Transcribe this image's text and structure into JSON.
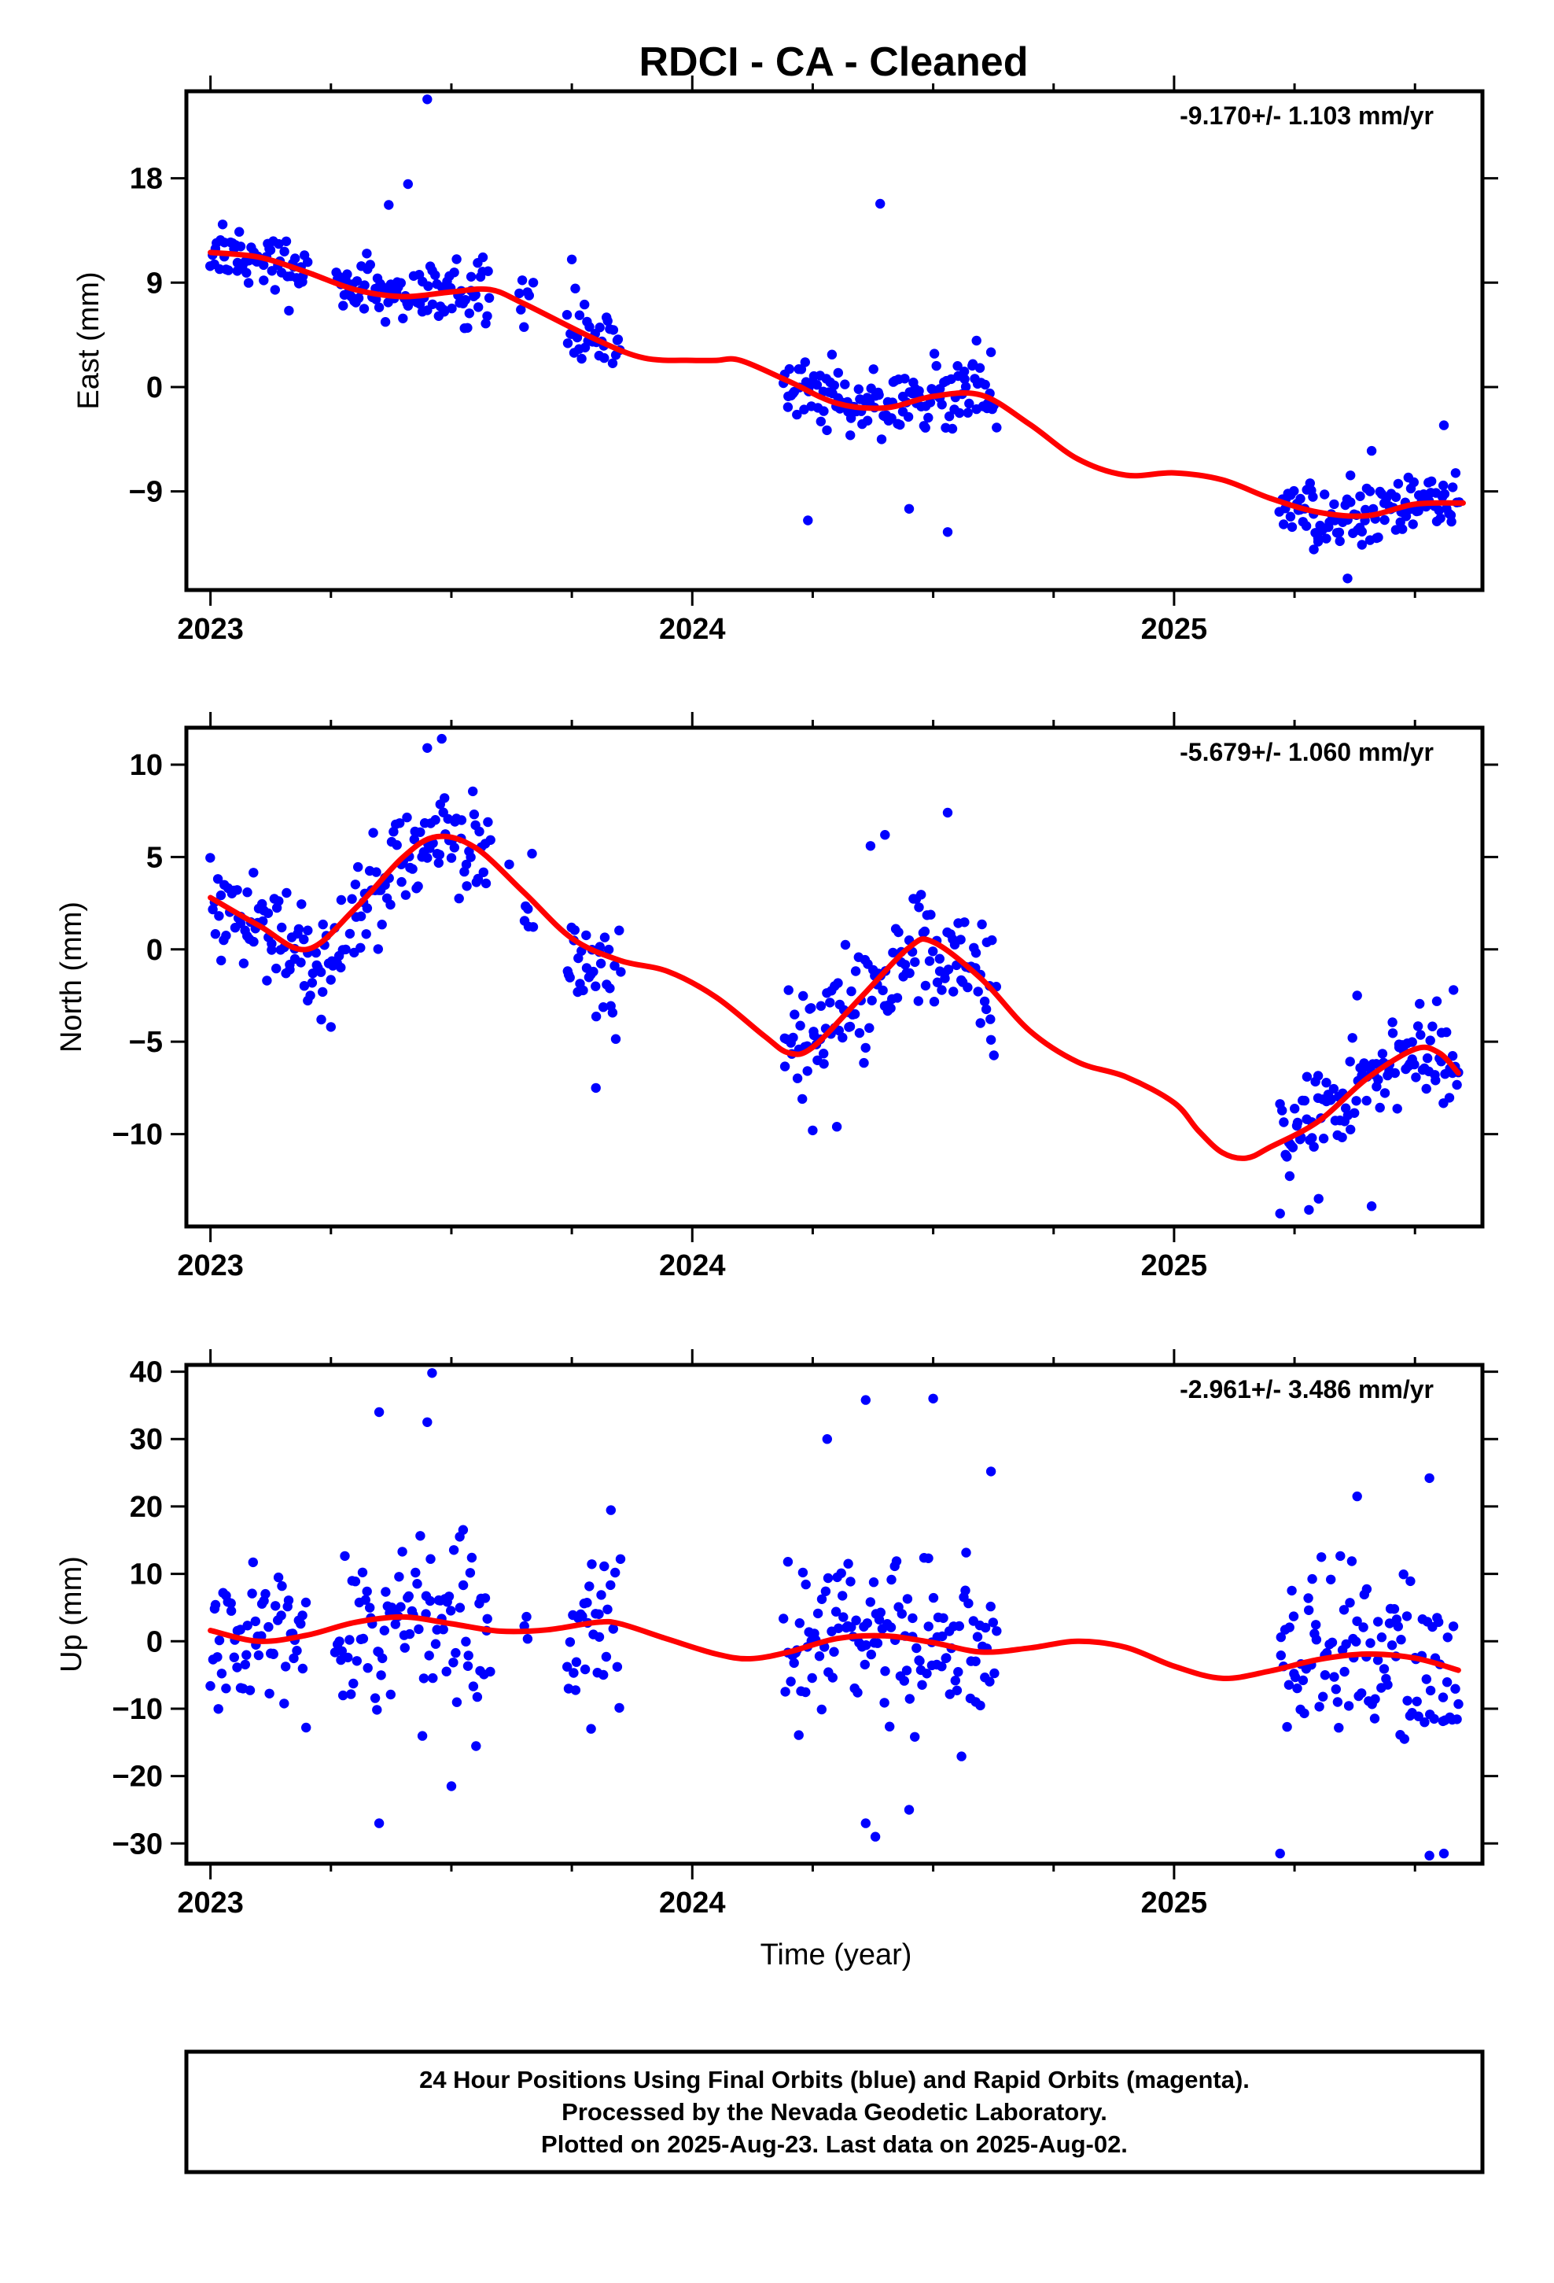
{
  "title": "RDCI  - CA - Cleaned",
  "chart_data": [
    {
      "type": "scatter",
      "ylabel": "East (mm)",
      "rate_label": "-9.170+/- 1.103 mm/yr",
      "xlim": [
        2022.95,
        2025.64
      ],
      "ylim": [
        -17.5,
        25.5
      ],
      "xticks": [
        2023,
        2024,
        2025
      ],
      "xtick_labels": [
        "2023",
        "2024",
        "2025"
      ],
      "yticks": [
        -9,
        0,
        9,
        18
      ],
      "ytick_labels": [
        "−9",
        "0",
        "9",
        "18"
      ],
      "point_color": "#0000ff",
      "fit_color": "#ff0000",
      "fit": [
        [
          2023.0,
          11.6
        ],
        [
          2023.1,
          11.2
        ],
        [
          2023.2,
          9.9
        ],
        [
          2023.3,
          8.4
        ],
        [
          2023.4,
          7.8
        ],
        [
          2023.5,
          8.2
        ],
        [
          2023.58,
          8.4
        ],
        [
          2023.65,
          7.2
        ],
        [
          2023.8,
          4.1
        ],
        [
          2023.9,
          2.5
        ],
        [
          2024.0,
          2.3
        ],
        [
          2024.05,
          2.3
        ],
        [
          2024.1,
          2.3
        ],
        [
          2024.2,
          0.5
        ],
        [
          2024.3,
          -1.4
        ],
        [
          2024.4,
          -1.8
        ],
        [
          2024.5,
          -0.8
        ],
        [
          2024.6,
          -0.7
        ],
        [
          2024.7,
          -3.2
        ],
        [
          2024.8,
          -6.2
        ],
        [
          2024.9,
          -7.6
        ],
        [
          2025.0,
          -7.4
        ],
        [
          2025.1,
          -8.0
        ],
        [
          2025.2,
          -9.6
        ],
        [
          2025.3,
          -10.8
        ],
        [
          2025.4,
          -11.1
        ],
        [
          2025.5,
          -10.1
        ],
        [
          2025.6,
          -10.0
        ]
      ],
      "segments": [
        [
          2023.0,
          2023.2,
          0
        ],
        [
          2023.26,
          2023.58,
          0
        ],
        [
          2023.64,
          2023.66,
          0.4
        ],
        [
          2023.74,
          2023.85,
          0
        ],
        [
          2024.19,
          2024.63,
          0
        ],
        [
          2025.22,
          2025.59,
          0
        ]
      ],
      "sigma": 2.0,
      "outliers": [
        [
          2023.45,
          24.8
        ],
        [
          2024.39,
          15.8
        ],
        [
          2023.41,
          17.5
        ],
        [
          2023.37,
          15.7
        ],
        [
          2023.67,
          9.0
        ],
        [
          2023.75,
          11.0
        ],
        [
          2024.24,
          -11.5
        ],
        [
          2024.45,
          -10.5
        ],
        [
          2024.53,
          -12.5
        ],
        [
          2025.36,
          -16.5
        ],
        [
          2025.39,
          -13.6
        ],
        [
          2025.29,
          -14.0
        ],
        [
          2025.41,
          -5.5
        ],
        [
          2025.56,
          -3.3
        ],
        [
          2024.62,
          3.0
        ],
        [
          2024.59,
          4.0
        ],
        [
          2024.29,
          2.8
        ]
      ]
    },
    {
      "type": "scatter",
      "ylabel": "North (mm)",
      "rate_label": "-5.679+/- 1.060 mm/yr",
      "xlim": [
        2022.95,
        2025.64
      ],
      "ylim": [
        -15.0,
        12.0
      ],
      "xticks": [
        2023,
        2024,
        2025
      ],
      "xtick_labels": [
        "2023",
        "2024",
        "2025"
      ],
      "yticks": [
        -10,
        -5,
        0,
        5,
        10
      ],
      "ytick_labels": [
        "−10",
        "−5",
        "0",
        "5",
        "10"
      ],
      "point_color": "#0000ff",
      "fit_color": "#ff0000",
      "fit": [
        [
          2023.0,
          2.8
        ],
        [
          2023.1,
          1.3
        ],
        [
          2023.2,
          0.0
        ],
        [
          2023.3,
          2.2
        ],
        [
          2023.4,
          5.0
        ],
        [
          2023.47,
          6.1
        ],
        [
          2023.55,
          5.5
        ],
        [
          2023.65,
          3.1
        ],
        [
          2023.75,
          0.6
        ],
        [
          2023.85,
          -0.6
        ],
        [
          2023.95,
          -1.2
        ],
        [
          2024.05,
          -2.6
        ],
        [
          2024.15,
          -4.7
        ],
        [
          2024.2,
          -5.6
        ],
        [
          2024.25,
          -5.3
        ],
        [
          2024.35,
          -2.6
        ],
        [
          2024.45,
          0.1
        ],
        [
          2024.5,
          0.4
        ],
        [
          2024.6,
          -1.6
        ],
        [
          2024.7,
          -4.4
        ],
        [
          2024.8,
          -6.1
        ],
        [
          2024.9,
          -6.9
        ],
        [
          2025.0,
          -8.3
        ],
        [
          2025.05,
          -9.8
        ],
        [
          2025.1,
          -11.0
        ],
        [
          2025.15,
          -11.3
        ],
        [
          2025.2,
          -10.7
        ],
        [
          2025.3,
          -9.3
        ],
        [
          2025.4,
          -7.0
        ],
        [
          2025.5,
          -5.4
        ],
        [
          2025.55,
          -5.6
        ],
        [
          2025.59,
          -6.7
        ]
      ],
      "segments": [
        [
          2023.0,
          2023.2,
          0
        ],
        [
          2023.2,
          2023.28,
          -1.5
        ],
        [
          2023.29,
          2023.58,
          0
        ],
        [
          2023.65,
          2023.67,
          0.5
        ],
        [
          2023.74,
          2023.85,
          -1.0
        ],
        [
          2024.19,
          2024.63,
          0
        ],
        [
          2025.22,
          2025.59,
          0
        ]
      ],
      "sigma": 2.0,
      "outliers": [
        [
          2023.48,
          11.4
        ],
        [
          2023.45,
          10.9
        ],
        [
          2023.25,
          -4.2
        ],
        [
          2023.23,
          -3.8
        ],
        [
          2023.8,
          -7.5
        ],
        [
          2024.25,
          -9.8
        ],
        [
          2024.3,
          -9.6
        ],
        [
          2024.53,
          7.4
        ],
        [
          2024.4,
          6.2
        ],
        [
          2024.37,
          5.6
        ],
        [
          2025.28,
          -14.1
        ],
        [
          2025.22,
          -14.3
        ],
        [
          2025.3,
          -13.5
        ],
        [
          2025.41,
          -13.9
        ],
        [
          2025.38,
          -2.5
        ],
        [
          2025.58,
          -2.2
        ],
        [
          2024.62,
          -4.9
        ],
        [
          2023.62,
          4.6
        ]
      ]
    },
    {
      "type": "scatter",
      "ylabel": "Up (mm)",
      "rate_label": "-2.961+/- 3.486 mm/yr",
      "xlim": [
        2022.95,
        2025.64
      ],
      "ylim": [
        -33.0,
        41.0
      ],
      "xticks": [
        2023,
        2024,
        2025
      ],
      "xtick_labels": [
        "2023",
        "2024",
        "2025"
      ],
      "xlabel": "Time (year)",
      "yticks": [
        -30,
        -20,
        -10,
        0,
        10,
        20,
        30,
        40
      ],
      "ytick_labels": [
        "−30",
        "−20",
        "−10",
        "0",
        "10",
        "20",
        "30",
        "40"
      ],
      "point_color": "#0000ff",
      "fit_color": "#ff0000",
      "fit": [
        [
          2023.0,
          1.6
        ],
        [
          2023.1,
          0.0
        ],
        [
          2023.2,
          0.9
        ],
        [
          2023.3,
          2.8
        ],
        [
          2023.4,
          3.6
        ],
        [
          2023.5,
          2.6
        ],
        [
          2023.6,
          1.5
        ],
        [
          2023.7,
          1.7
        ],
        [
          2023.8,
          2.8
        ],
        [
          2023.85,
          2.6
        ],
        [
          2023.95,
          0.3
        ],
        [
          2024.05,
          -1.9
        ],
        [
          2024.12,
          -2.6
        ],
        [
          2024.2,
          -1.6
        ],
        [
          2024.3,
          0.4
        ],
        [
          2024.4,
          0.8
        ],
        [
          2024.5,
          -0.2
        ],
        [
          2024.6,
          -1.6
        ],
        [
          2024.7,
          -1.0
        ],
        [
          2024.8,
          0.0
        ],
        [
          2024.9,
          -0.9
        ],
        [
          2025.0,
          -3.7
        ],
        [
          2025.1,
          -5.5
        ],
        [
          2025.2,
          -4.4
        ],
        [
          2025.3,
          -2.7
        ],
        [
          2025.4,
          -1.9
        ],
        [
          2025.5,
          -2.5
        ],
        [
          2025.59,
          -4.3
        ]
      ],
      "segments": [
        [
          2023.0,
          2023.2,
          0
        ],
        [
          2023.26,
          2023.58,
          0
        ],
        [
          2023.65,
          2023.66,
          0
        ],
        [
          2023.74,
          2023.85,
          0
        ],
        [
          2024.19,
          2024.63,
          0
        ],
        [
          2025.22,
          2025.59,
          0
        ]
      ],
      "sigma": 9.0,
      "outliers": [
        [
          2023.46,
          39.8
        ],
        [
          2023.35,
          34.0
        ],
        [
          2023.45,
          32.5
        ],
        [
          2024.36,
          35.8
        ],
        [
          2024.5,
          36.0
        ],
        [
          2024.28,
          30.0
        ],
        [
          2023.35,
          -27.0
        ],
        [
          2024.38,
          -29.0
        ],
        [
          2024.36,
          -27.0
        ],
        [
          2025.22,
          -31.5
        ],
        [
          2025.53,
          -31.8
        ],
        [
          2025.56,
          -31.5
        ],
        [
          2024.45,
          -25.0
        ],
        [
          2025.53,
          24.2
        ],
        [
          2025.38,
          21.5
        ],
        [
          2024.62,
          25.2
        ],
        [
          2023.5,
          -21.5
        ],
        [
          2023.79,
          -13.0
        ]
      ]
    }
  ],
  "footer": {
    "line1": "24 Hour Positions Using Final Orbits (blue) and Rapid Orbits (magenta).",
    "line2": "Processed by the Nevada Geodetic Laboratory.",
    "line3": "Plotted on 2025-Aug-23. Last data on 2025-Aug-02."
  }
}
